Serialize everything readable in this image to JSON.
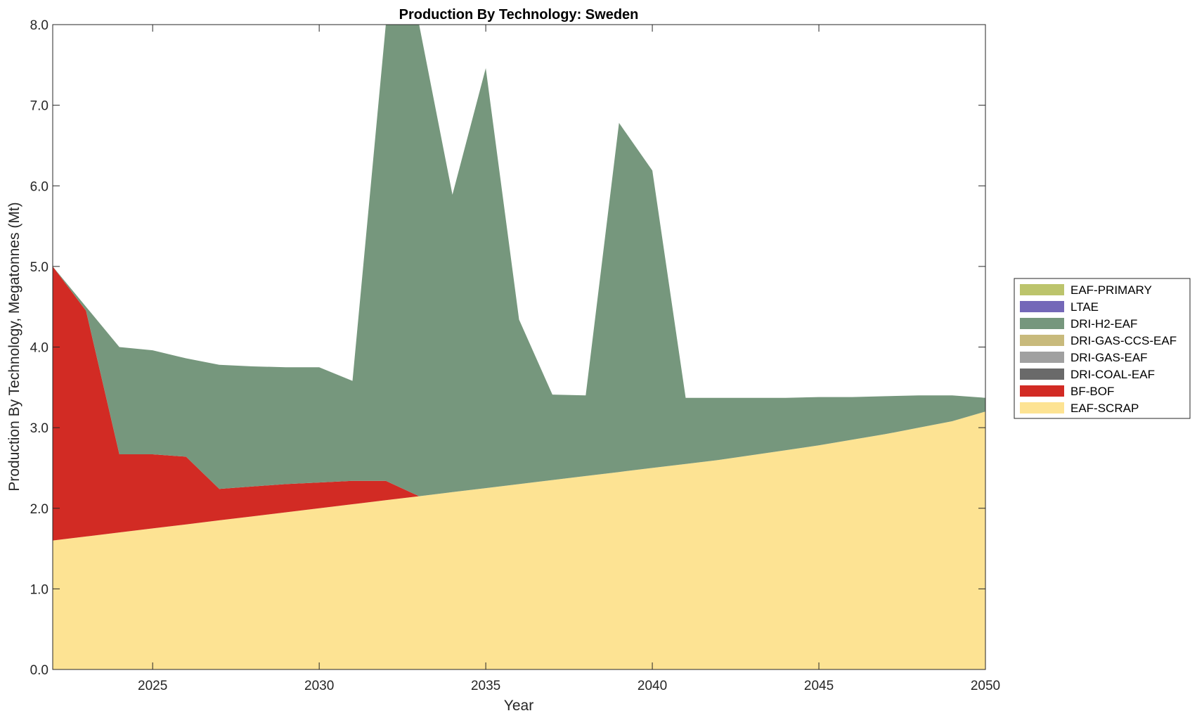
{
  "chart_data": {
    "type": "area",
    "title": "Production By Technology: Sweden",
    "xlabel": "Year",
    "ylabel": "Production By Technology, Megatonnes (Mt)",
    "xlim": [
      2022,
      2050
    ],
    "ylim": [
      0,
      8
    ],
    "xticks": [
      2025,
      2030,
      2035,
      2040,
      2045,
      2050
    ],
    "yticks": [
      "0.0",
      "1.0",
      "2.0",
      "3.0",
      "4.0",
      "5.0",
      "6.0",
      "7.0",
      "8.0"
    ],
    "legend_position": "right",
    "grid": false,
    "x": [
      2022,
      2023,
      2024,
      2025,
      2026,
      2027,
      2028,
      2029,
      2030,
      2031,
      2032,
      2033,
      2034,
      2035,
      2036,
      2037,
      2038,
      2039,
      2040,
      2041,
      2042,
      2043,
      2044,
      2045,
      2046,
      2047,
      2048,
      2049,
      2050
    ],
    "series": [
      {
        "name": "EAF-SCRAP",
        "color": "#FDE393",
        "values": [
          1.6,
          1.65,
          1.7,
          1.75,
          1.8,
          1.85,
          1.9,
          1.95,
          2.0,
          2.05,
          2.1,
          2.15,
          2.2,
          2.25,
          2.3,
          2.35,
          2.4,
          2.45,
          2.5,
          2.55,
          2.6,
          2.66,
          2.72,
          2.78,
          2.85,
          2.92,
          3.0,
          3.08,
          3.2
        ]
      },
      {
        "name": "BF-BOF",
        "color": "#D22B24",
        "values": [
          3.4,
          2.8,
          0.97,
          0.92,
          0.84,
          0.39,
          0.37,
          0.35,
          0.32,
          0.29,
          0.24,
          0,
          0,
          0,
          0,
          0,
          0,
          0,
          0,
          0,
          0,
          0,
          0,
          0,
          0,
          0,
          0,
          0,
          0
        ]
      },
      {
        "name": "DRI-COAL-EAF",
        "color": "#6A6A6A",
        "values": [
          0,
          0,
          0,
          0,
          0,
          0,
          0,
          0,
          0,
          0,
          0,
          0,
          0,
          0,
          0,
          0,
          0,
          0,
          0,
          0,
          0,
          0,
          0,
          0,
          0,
          0,
          0,
          0,
          0
        ]
      },
      {
        "name": "DRI-GAS-EAF",
        "color": "#A0A0A0",
        "values": [
          0,
          0,
          0,
          0,
          0,
          0,
          0,
          0,
          0,
          0,
          0,
          0,
          0,
          0,
          0,
          0,
          0,
          0,
          0,
          0,
          0,
          0,
          0,
          0,
          0,
          0,
          0,
          0,
          0
        ]
      },
      {
        "name": "DRI-GAS-CCS-EAF",
        "color": "#C8BA7C",
        "values": [
          0,
          0,
          0,
          0,
          0,
          0,
          0,
          0,
          0,
          0,
          0,
          0,
          0,
          0,
          0,
          0,
          0,
          0,
          0,
          0,
          0,
          0,
          0,
          0,
          0,
          0,
          0,
          0,
          0
        ]
      },
      {
        "name": "DRI-H2-EAF",
        "color": "#76977D",
        "values": [
          0,
          0.05,
          1.33,
          1.29,
          1.22,
          1.54,
          1.49,
          1.45,
          1.43,
          1.24,
          5.69,
          5.85,
          3.69,
          5.21,
          2.04,
          1.06,
          1.0,
          4.33,
          3.69,
          0.82,
          0.77,
          0.71,
          0.65,
          0.6,
          0.53,
          0.47,
          0.4,
          0.32,
          0.17
        ]
      },
      {
        "name": "LTAE",
        "color": "#7468B8",
        "values": [
          0,
          0,
          0,
          0,
          0,
          0,
          0,
          0,
          0,
          0,
          0,
          0,
          0,
          0,
          0,
          0,
          0,
          0,
          0,
          0,
          0,
          0,
          0,
          0,
          0,
          0,
          0,
          0,
          0
        ]
      },
      {
        "name": "EAF-PRIMARY",
        "color": "#BCC46C",
        "values": [
          0,
          0,
          0,
          0,
          0,
          0,
          0,
          0,
          0,
          0,
          0,
          0,
          0,
          0,
          0,
          0,
          0,
          0,
          0,
          0,
          0,
          0,
          0,
          0,
          0,
          0,
          0,
          0,
          0
        ]
      }
    ]
  }
}
